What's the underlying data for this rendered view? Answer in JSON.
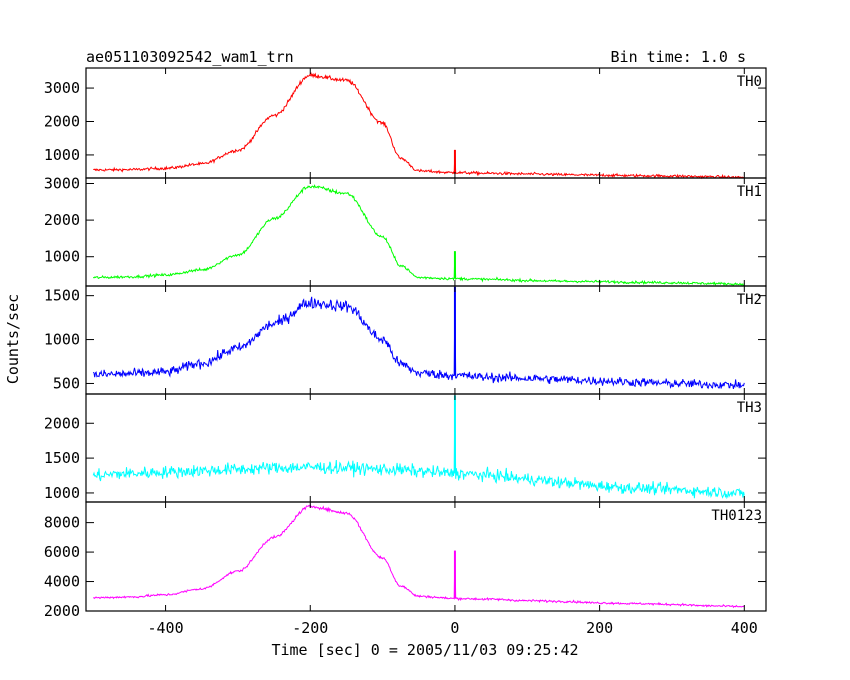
{
  "header": {
    "title": "ae051103092542_wam1_trn",
    "bin_time": "Bin time: 1.0 s"
  },
  "chart_data": {
    "type": "line",
    "title": "ae051103092542_wam1_trn",
    "subtitle": "Bin time: 1.0 s",
    "xlabel": "Time [sec] 0 = 2005/11/03 09:25:42",
    "ylabel": "Counts/sec",
    "xlim": [
      -510,
      430
    ],
    "x_ticks": [
      -400,
      -200,
      0,
      200,
      400
    ],
    "x": [
      -500,
      -450,
      -400,
      -350,
      -300,
      -250,
      -200,
      -150,
      -100,
      -75,
      -50,
      0,
      50,
      100,
      150,
      200,
      250,
      300,
      350,
      400
    ],
    "panels": [
      {
        "name": "TH0",
        "color": "#ff0000",
        "ylim": [
          310,
          3600
        ],
        "y_ticks": [
          1000,
          2000,
          3000
        ],
        "values": [
          550,
          560,
          600,
          730,
          1140,
          2180,
          3380,
          3230,
          1950,
          900,
          520,
          470,
          450,
          430,
          410,
          395,
          380,
          370,
          350,
          330
        ],
        "spike": {
          "x": 0,
          "peak": 1150
        },
        "noise": 60
      },
      {
        "name": "TH1",
        "color": "#00ff00",
        "ylim": [
          200,
          3150
        ],
        "y_ticks": [
          1000,
          2000,
          3000
        ],
        "values": [
          430,
          450,
          500,
          640,
          1050,
          2040,
          2920,
          2730,
          1540,
          760,
          430,
          400,
          380,
          350,
          330,
          320,
          300,
          290,
          270,
          250
        ],
        "spike": {
          "x": 0,
          "peak": 1150
        },
        "noise": 50
      },
      {
        "name": "TH2",
        "color": "#0000ff",
        "ylim": [
          380,
          1610
        ],
        "y_ticks": [
          500,
          1000,
          1500
        ],
        "values": [
          600,
          610,
          630,
          730,
          900,
          1180,
          1420,
          1380,
          1000,
          720,
          620,
          590,
          570,
          560,
          545,
          530,
          515,
          500,
          490,
          480
        ],
        "spike": {
          "x": 0,
          "peak": 1600
        },
        "noise": 70
      },
      {
        "name": "TH3",
        "color": "#00ffff",
        "ylim": [
          870,
          2420
        ],
        "y_ticks": [
          1000,
          1500,
          2000
        ],
        "values": [
          1250,
          1280,
          1300,
          1320,
          1340,
          1360,
          1370,
          1360,
          1340,
          1330,
          1310,
          1280,
          1250,
          1200,
          1150,
          1100,
          1070,
          1050,
          1020,
          990
        ],
        "spike": {
          "x": 0,
          "peak": 2400
        },
        "noise": 110
      },
      {
        "name": "TH0123",
        "color": "#ff00ff",
        "ylim": [
          2000,
          9400
        ],
        "y_ticks": [
          2000,
          4000,
          6000,
          8000
        ],
        "values": [
          2900,
          2950,
          3100,
          3500,
          4700,
          7000,
          9100,
          8650,
          5600,
          3700,
          3000,
          2850,
          2800,
          2700,
          2650,
          2550,
          2500,
          2450,
          2350,
          2300
        ],
        "spike": {
          "x": 0,
          "peak": 6100
        },
        "noise": 100
      }
    ]
  }
}
